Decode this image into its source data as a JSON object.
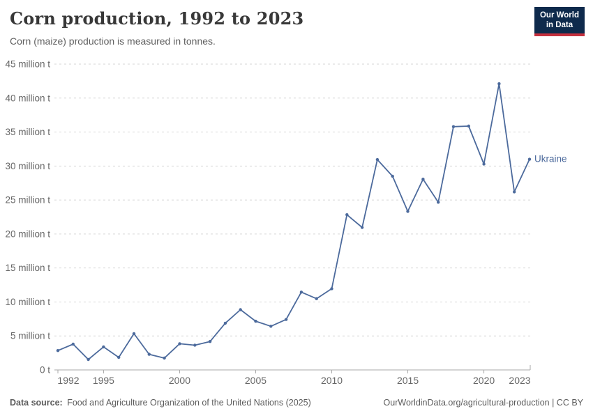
{
  "header": {
    "title": "Corn production, 1992 to 2023",
    "subtitle": "Corn (maize) production is measured in tonnes."
  },
  "logo": {
    "line1": "Our World",
    "line2": "in Data",
    "background": "#0e2a4c",
    "accent": "#c5303e",
    "text_color": "#ffffff"
  },
  "chart_data": {
    "type": "line",
    "title": "Corn production, 1992 to 2023",
    "subtitle": "Corn (maize) production is measured in tonnes.",
    "unit": "million tonnes",
    "x": [
      1992,
      1993,
      1994,
      1995,
      1996,
      1997,
      1998,
      1999,
      2000,
      2001,
      2002,
      2003,
      2004,
      2005,
      2006,
      2007,
      2008,
      2009,
      2010,
      2011,
      2012,
      2013,
      2014,
      2015,
      2016,
      2017,
      2018,
      2019,
      2020,
      2021,
      2022,
      2023
    ],
    "series": [
      {
        "name": "Ukraine",
        "color": "#4c6a9c",
        "values": [
          2.85,
          3.79,
          1.54,
          3.39,
          1.84,
          5.34,
          2.3,
          1.74,
          3.85,
          3.64,
          4.18,
          6.88,
          8.87,
          7.17,
          6.43,
          7.42,
          11.45,
          10.49,
          11.95,
          22.84,
          20.96,
          30.95,
          28.5,
          23.33,
          28.07,
          24.67,
          35.8,
          35.88,
          30.29,
          42.11,
          26.2,
          31.0
        ]
      }
    ],
    "xlim": [
      1992,
      2023
    ],
    "ylim": [
      0,
      45
    ],
    "x_ticks": [
      {
        "value": 1992,
        "label": "1992"
      },
      {
        "value": 1995,
        "label": "1995"
      },
      {
        "value": 2000,
        "label": "2000"
      },
      {
        "value": 2005,
        "label": "2005"
      },
      {
        "value": 2010,
        "label": "2010"
      },
      {
        "value": 2015,
        "label": "2015"
      },
      {
        "value": 2020,
        "label": "2020"
      },
      {
        "value": 2023,
        "label": "2023"
      }
    ],
    "y_ticks": [
      {
        "value": 0,
        "label": "0 t"
      },
      {
        "value": 5,
        "label": "5 million t"
      },
      {
        "value": 10,
        "label": "10 million t"
      },
      {
        "value": 15,
        "label": "15 million t"
      },
      {
        "value": 20,
        "label": "20 million t"
      },
      {
        "value": 25,
        "label": "25 million t"
      },
      {
        "value": 30,
        "label": "30 million t"
      },
      {
        "value": 35,
        "label": "35 million t"
      },
      {
        "value": 40,
        "label": "40 million t"
      },
      {
        "value": 45,
        "label": "45 million t"
      }
    ],
    "grid": {
      "horizontal": true,
      "style": "dashed",
      "color": "#d6d6d6"
    },
    "axis_color": "#a8a8a8",
    "tick_label_color": "#666666",
    "legend": {
      "position": "end-of-line",
      "label": "Ukraine"
    }
  },
  "footer": {
    "source_label": "Data source:",
    "source_text": "Food and Agriculture Organization of the United Nations (2025)",
    "attribution": "OurWorldinData.org/agricultural-production | CC BY"
  }
}
